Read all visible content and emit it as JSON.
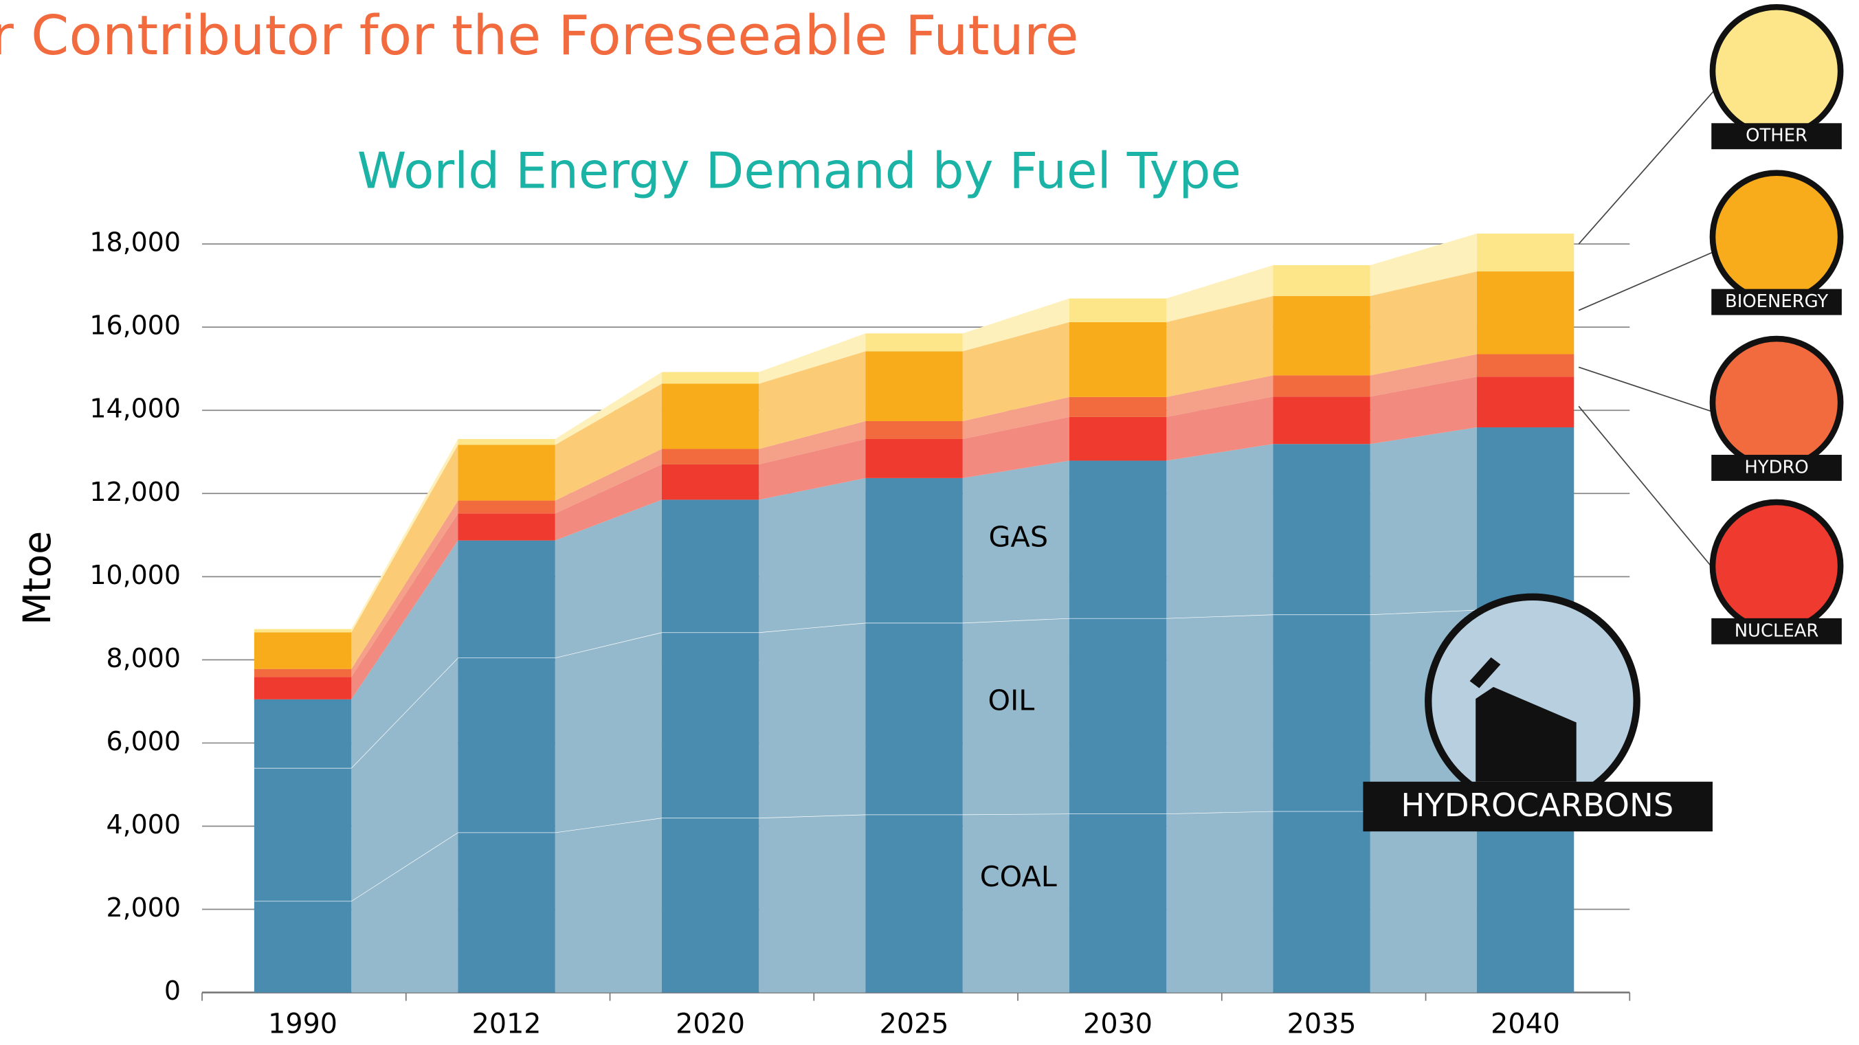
{
  "header_title": "r Contributor for the Foreseeable Future",
  "icons": [
    {
      "label": "OTHER"
    },
    {
      "label": "BIOENERGY"
    },
    {
      "label": "HYDRO"
    },
    {
      "label": "NUCLEAR"
    },
    {
      "label": "HYDROCARBONS"
    }
  ],
  "chart_data": {
    "type": "stacked_bar",
    "title": "World Energy Demand by Fuel Type",
    "y_label": "Mtoe",
    "categories": [
      "1990",
      "2012",
      "2020",
      "2025",
      "2030",
      "2035",
      "2040"
    ],
    "series": [
      {
        "name": "COAL",
        "color": "#4a8bb0",
        "link_color": "#94b9cc",
        "values": [
          2200,
          3850,
          4200,
          4280,
          4300,
          4360,
          4400
        ]
      },
      {
        "name": "OIL",
        "color": "#4a8bb0",
        "link_color": "#94b9cc",
        "values": [
          3200,
          4200,
          4460,
          4610,
          4700,
          4730,
          4800
        ]
      },
      {
        "name": "GAS",
        "color": "#4a8bb0",
        "link_color": "#94b9cc",
        "values": [
          1650,
          2820,
          3190,
          3480,
          3790,
          4100,
          4390
        ]
      },
      {
        "name": "NUCLEAR",
        "color": "#ee3a2f",
        "link_color": "#f28a80",
        "values": [
          540,
          650,
          850,
          940,
          1050,
          1140,
          1220
        ]
      },
      {
        "name": "HYDRO",
        "color": "#f26b3f",
        "link_color": "#f5a088",
        "values": [
          190,
          310,
          370,
          430,
          480,
          510,
          540
        ]
      },
      {
        "name": "BIOENERGY",
        "color": "#f8ab1b",
        "link_color": "#fbcc75",
        "values": [
          880,
          1340,
          1570,
          1680,
          1800,
          1910,
          1990
        ]
      },
      {
        "name": "OTHER",
        "color": "#fde68a",
        "link_color": "#fef0bb",
        "values": [
          80,
          140,
          280,
          430,
          570,
          740,
          910
        ]
      }
    ],
    "ylim": [
      0,
      18000
    ],
    "yticks": [
      0,
      {
        "value": 2000,
        "label": "2,000"
      },
      {
        "value": 4000,
        "label": "4,000"
      },
      {
        "value": 6000,
        "label": "6,000"
      },
      {
        "value": 8000,
        "label": "8,000"
      },
      {
        "value": 10000,
        "label": "10,000"
      },
      {
        "value": 12000,
        "label": "12,000"
      },
      {
        "value": 14000,
        "label": "14,000"
      },
      {
        "value": 16000,
        "label": "16,000"
      },
      {
        "value": 18000,
        "label": "18,000"
      }
    ],
    "grid": true
  }
}
